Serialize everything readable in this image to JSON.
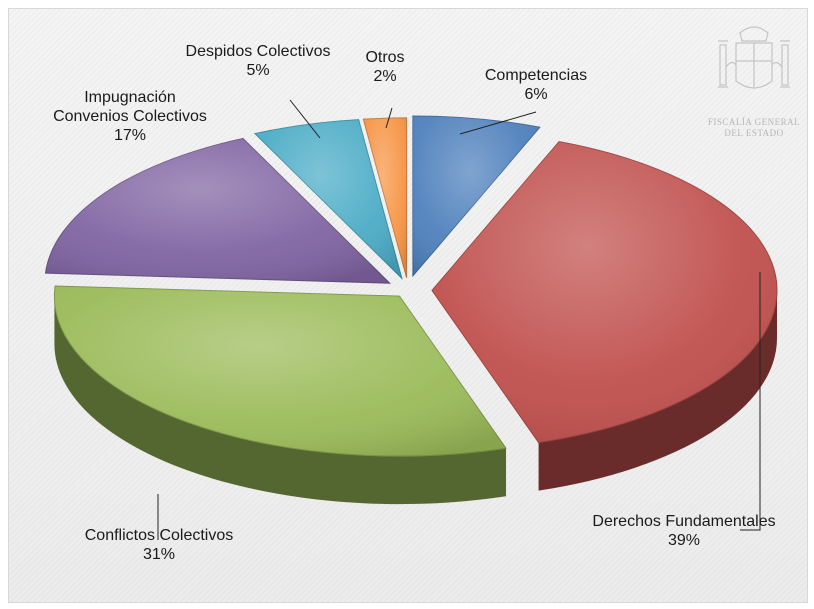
{
  "chart_data": {
    "type": "pie",
    "style": "3d-exploded",
    "categories": [
      "Competencias",
      "Derechos Fundamentales",
      "Conflictos Colectivos",
      "Impugnación Convenios Colectivos",
      "Despidos Colectivos",
      "Otros"
    ],
    "values": [
      6,
      39,
      31,
      17,
      5,
      2
    ],
    "value_labels": [
      "6%",
      "39%",
      "31%",
      "17%",
      "5%",
      "2%"
    ],
    "label_lines": [
      [
        "Competencias",
        "6%"
      ],
      [
        "Derechos Fundamentales",
        "39%"
      ],
      [
        "Conflictos Colectivos",
        "31%"
      ],
      [
        "Impugnación",
        "Convenios Colectivos",
        "17%"
      ],
      [
        "Despidos Colectivos",
        "5%"
      ],
      [
        "Otros",
        "2%"
      ]
    ],
    "colors": [
      "#4f81bd",
      "#c0504d",
      "#9bbb59",
      "#8064a2",
      "#4bacc6",
      "#f79646"
    ],
    "legend": "none"
  },
  "logo": {
    "name": "coat-of-arms-icon",
    "text_lines": [
      "FISCALÍA GENERAL",
      "DEL ESTADO"
    ]
  }
}
